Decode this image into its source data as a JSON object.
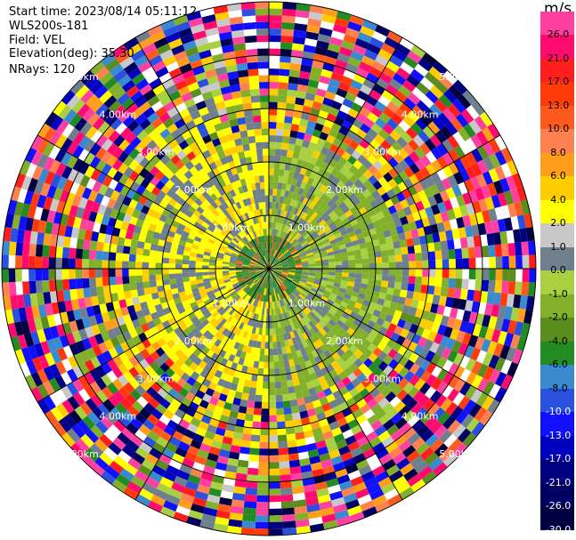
{
  "header": {
    "start_time": "Start time: 2023/08/14 05:11:12",
    "instrument": "WLS200s-181",
    "field": "Field: VEL",
    "elevation": "Elevation(deg): 35.30",
    "nrays": "NRays: 120"
  },
  "colorbar": {
    "unit": "m/s",
    "ticks": [
      "26.0",
      "21.0",
      "17.0",
      "13.0",
      "10.0",
      "8.0",
      "6.0",
      "4.0",
      "2.0",
      "1.0",
      "0.0",
      "-1.0",
      "-2.0",
      "-4.0",
      "-6.0",
      "-8.0",
      "-10.0",
      "-13.0",
      "-17.0",
      "-21.0",
      "-26.0",
      "-30.0"
    ],
    "colors": [
      "#ff40a0",
      "#ff0a6e",
      "#ff1e1e",
      "#ff3a0a",
      "#ff5a1e",
      "#ff8050",
      "#ff9e1a",
      "#ffcc00",
      "#ffff00",
      "#c8c8c8",
      "#6e7f8e",
      "#a8d040",
      "#82b02a",
      "#5a8c1e",
      "#228b22",
      "#3a8ad0",
      "#2a50e0",
      "#1010ff",
      "#0000c0",
      "#000080",
      "#000060",
      "#000040"
    ]
  },
  "range_rings": [
    "1.00km",
    "2.00km",
    "3.00km",
    "4.00km",
    "5.00km"
  ]
}
